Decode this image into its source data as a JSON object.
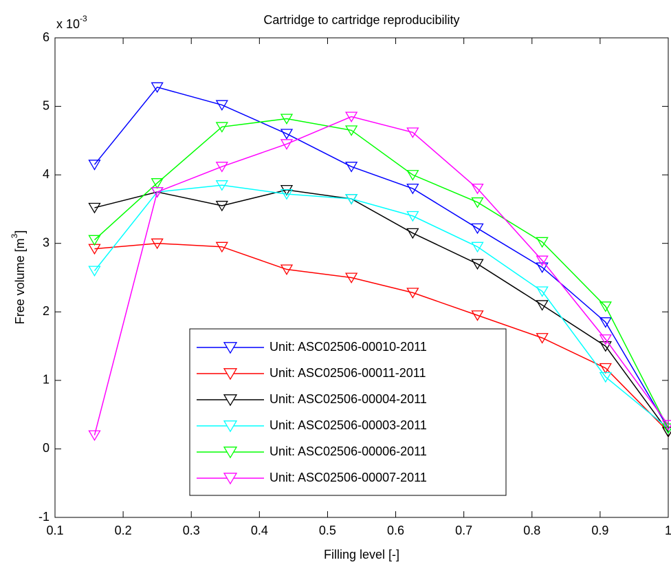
{
  "chart_data": {
    "type": "line",
    "title": "Cartridge to cartridge reproducibility",
    "xlabel": "Filling level [-]",
    "ylabel": [
      "Free volume [m",
      "3",
      "]"
    ],
    "y_scale_label": {
      "base": "x 10",
      "exponent": "-3"
    },
    "x": [
      0.158,
      0.25,
      0.345,
      0.44,
      0.535,
      0.625,
      0.72,
      0.815,
      0.908,
      1.0
    ],
    "xlim": [
      0.1,
      1
    ],
    "xticks": [
      0.1,
      0.2,
      0.3,
      0.4,
      0.5,
      0.6,
      0.7,
      0.8,
      0.9,
      1
    ],
    "ylim": [
      -1,
      6
    ],
    "yticks": [
      -1,
      0,
      1,
      2,
      3,
      4,
      5,
      6
    ],
    "legend": "lower center",
    "series": [
      {
        "name": "Unit: ASC02506-00010-2011",
        "color": "#0000ff",
        "values": [
          4.15,
          5.28,
          5.02,
          4.6,
          4.12,
          3.8,
          3.22,
          2.65,
          1.85,
          0.3
        ]
      },
      {
        "name": "Unit: ASC02506-00011-2011",
        "color": "#ff0000",
        "values": [
          2.92,
          3.0,
          2.95,
          2.62,
          2.5,
          2.28,
          1.95,
          1.62,
          1.18,
          0.25
        ]
      },
      {
        "name": "Unit: ASC02506-00004-2011",
        "color": "#000000",
        "values": [
          3.52,
          3.75,
          3.55,
          3.78,
          3.65,
          3.15,
          2.7,
          2.1,
          1.5,
          0.25
        ]
      },
      {
        "name": "Unit: ASC02506-00003-2011",
        "color": "#00ffff",
        "values": [
          2.6,
          3.75,
          3.85,
          3.72,
          3.65,
          3.4,
          2.95,
          2.3,
          1.05,
          0.3
        ]
      },
      {
        "name": "Unit: ASC02506-00006-2011",
        "color": "#00ff00",
        "values": [
          3.05,
          3.88,
          4.7,
          4.82,
          4.65,
          4.0,
          3.6,
          3.02,
          2.08,
          0.3
        ]
      },
      {
        "name": "Unit: ASC02506-00007-2011",
        "color": "#ff00ff",
        "values": [
          0.2,
          3.75,
          4.12,
          4.45,
          4.85,
          4.62,
          3.8,
          2.75,
          1.6,
          0.35
        ]
      }
    ]
  }
}
